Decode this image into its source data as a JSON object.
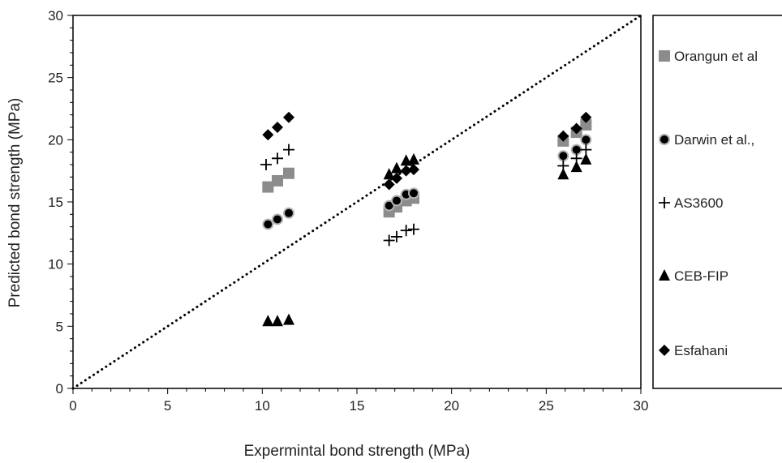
{
  "chart_data": {
    "type": "scatter",
    "xlabel": "Expermintal bond strength (MPa)",
    "ylabel": "Predicted bond strength (MPa)",
    "xlim": [
      0,
      30
    ],
    "ylim": [
      0,
      30
    ],
    "xticks": [
      "0",
      "5",
      "10",
      "15",
      "20",
      "25",
      "30"
    ],
    "yticks": [
      "0",
      "5",
      "10",
      "15",
      "20",
      "25",
      "30"
    ],
    "grid": false,
    "legend_position": "right",
    "reference_line": {
      "style": "dotted",
      "from": [
        0,
        0
      ],
      "to": [
        30,
        30
      ]
    },
    "series": [
      {
        "name": "Orangun et al",
        "marker": "square",
        "color": "#8c8c8c",
        "points": [
          [
            10.3,
            16.2
          ],
          [
            10.8,
            16.7
          ],
          [
            11.4,
            17.3
          ],
          [
            16.7,
            14.2
          ],
          [
            17.1,
            14.6
          ],
          [
            17.6,
            15.1
          ],
          [
            18.0,
            15.3
          ],
          [
            25.9,
            19.9
          ],
          [
            26.6,
            20.6
          ],
          [
            27.1,
            21.2
          ]
        ]
      },
      {
        "name": "Darwin et al.,",
        "marker": "circle",
        "color": "#000000",
        "points": [
          [
            10.3,
            13.2
          ],
          [
            10.8,
            13.6
          ],
          [
            11.4,
            14.1
          ],
          [
            16.7,
            14.7
          ],
          [
            17.1,
            15.1
          ],
          [
            17.6,
            15.6
          ],
          [
            18.0,
            15.7
          ],
          [
            25.9,
            18.7
          ],
          [
            26.6,
            19.2
          ],
          [
            27.1,
            20.0
          ]
        ]
      },
      {
        "name": "AS3600",
        "marker": "plus",
        "color": "#000000",
        "points": [
          [
            10.2,
            18.0
          ],
          [
            10.8,
            18.5
          ],
          [
            11.4,
            19.2
          ],
          [
            16.7,
            11.9
          ],
          [
            17.1,
            12.2
          ],
          [
            17.6,
            12.7
          ],
          [
            18.0,
            12.8
          ],
          [
            25.9,
            17.9
          ],
          [
            26.6,
            18.5
          ],
          [
            27.1,
            19.2
          ]
        ]
      },
      {
        "name": "CEB-FIP",
        "marker": "triangle",
        "color": "#000000",
        "points": [
          [
            10.3,
            5.4
          ],
          [
            10.8,
            5.4
          ],
          [
            11.4,
            5.5
          ],
          [
            16.7,
            17.2
          ],
          [
            17.1,
            17.7
          ],
          [
            17.6,
            18.3
          ],
          [
            18.0,
            18.4
          ],
          [
            25.9,
            17.2
          ],
          [
            26.6,
            17.8
          ],
          [
            27.1,
            18.4
          ]
        ]
      },
      {
        "name": "Esfahani",
        "marker": "diamond",
        "color": "#000000",
        "points": [
          [
            10.3,
            20.4
          ],
          [
            10.8,
            21.0
          ],
          [
            11.4,
            21.8
          ],
          [
            16.7,
            16.4
          ],
          [
            17.1,
            16.9
          ],
          [
            17.6,
            17.5
          ],
          [
            18.0,
            17.6
          ],
          [
            25.9,
            20.3
          ],
          [
            26.6,
            20.9
          ],
          [
            27.1,
            21.8
          ]
        ]
      }
    ]
  }
}
